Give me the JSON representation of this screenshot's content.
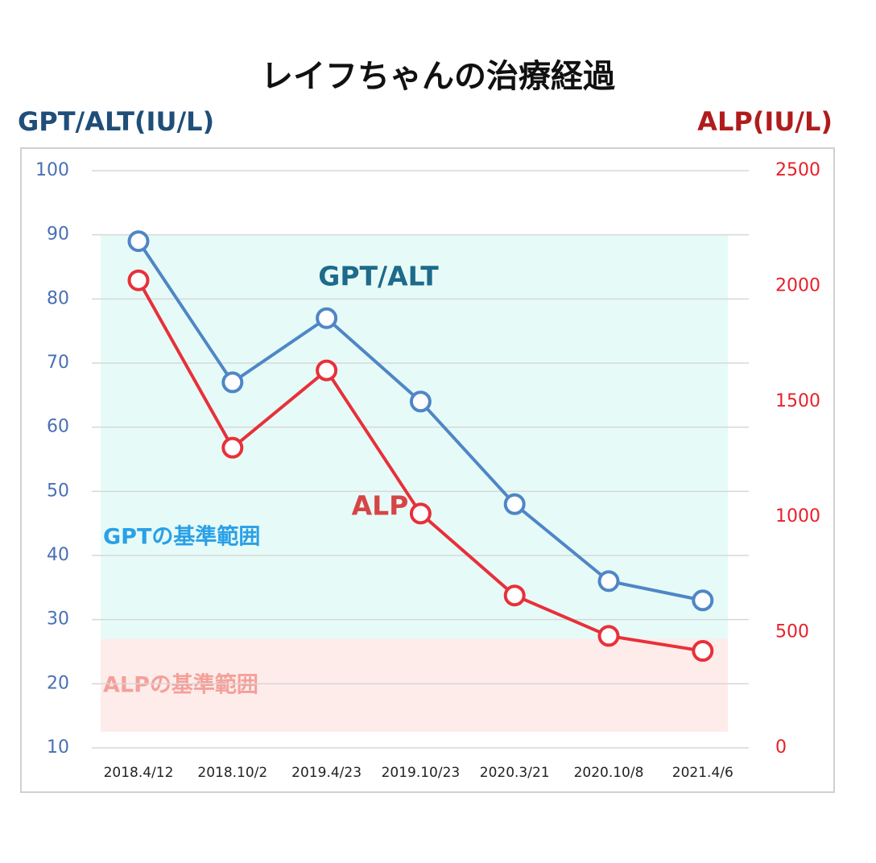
{
  "title": "レイフちゃんの治療経過",
  "left_axis_title": "GPT/ALT(IU/L)",
  "right_axis_title": "ALP(IU/L)",
  "colors": {
    "gpt": "#4f86c6",
    "alp": "#e8303a",
    "left_axis": "#4a6fb5",
    "right_axis": "#e8202a",
    "left_title": "#1f4e79",
    "right_title": "#b01c1c",
    "gpt_label": "#1e6a8a",
    "alp_label": "#d64545",
    "gpt_band": "#e6fbf8",
    "alp_band": "#feecea",
    "gpt_band_label": "#2aa0e6",
    "alp_band_label": "#f4a09a",
    "grid": "#d7d7d7",
    "frame": "#d0d0d0"
  },
  "chart_data": {
    "type": "line",
    "categories": [
      "2018.4/12",
      "2018.10/2",
      "2019.4/23",
      "2019.10/23",
      "2020.3/21",
      "2020.10/8",
      "2021.4/6"
    ],
    "series": [
      {
        "name": "GPT/ALT",
        "axis": "left",
        "values": [
          89,
          67,
          77,
          64,
          48,
          36,
          33
        ]
      },
      {
        "name": "ALP",
        "axis": "right",
        "values": [
          2025,
          1300,
          1635,
          1015,
          660,
          485,
          420
        ]
      }
    ],
    "y_left": {
      "min": 10,
      "max": 100,
      "ticks": [
        "10",
        "20",
        "30",
        "40",
        "50",
        "60",
        "70",
        "80",
        "90",
        "100"
      ]
    },
    "y_right": {
      "min": 0,
      "max": 2500,
      "ticks": [
        "0",
        "500",
        "1000",
        "1500",
        "2000",
        "2500"
      ]
    },
    "grid": true,
    "reference_bands": [
      {
        "label": "GPTの基準範囲",
        "axis": "left",
        "range": [
          27,
          90
        ]
      },
      {
        "label": "ALPの基準範囲",
        "axis": "left",
        "range": [
          12.5,
          27
        ]
      }
    ],
    "annotations": [
      "GPT/ALT",
      "ALP"
    ]
  }
}
